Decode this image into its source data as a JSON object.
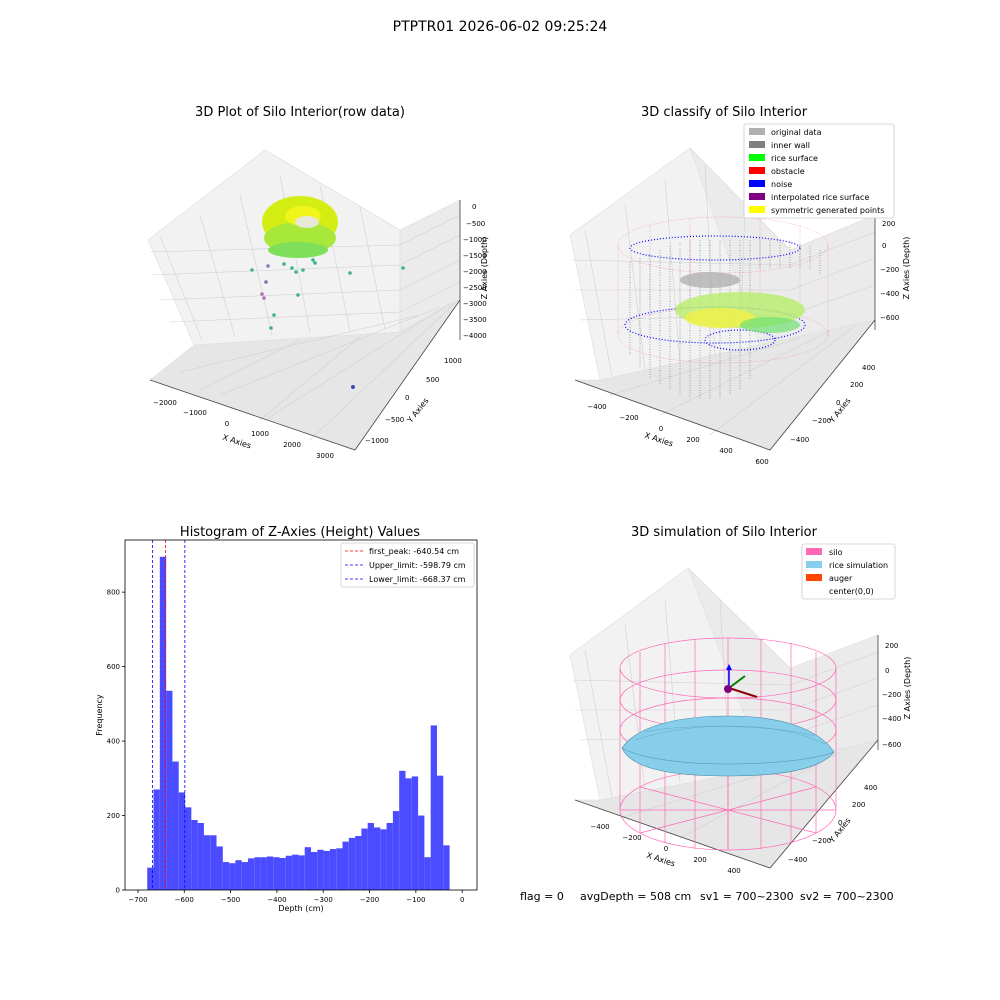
{
  "figure": {
    "suptitle": "PTPTR01 2026-06-02 09:25:24",
    "footer": {
      "flag": "flag = 0",
      "avg": "avgDepth = 508 cm",
      "sv1": "sv1 = 700~2300",
      "sv2": "sv2 = 700~2300"
    }
  },
  "colors": {
    "original_data": "#b0b0b0",
    "inner_wall": "#808080",
    "rice_surface": "#00ff00",
    "obstacle": "#ff0000",
    "noise": "#0000ff",
    "interpolated": "#800080",
    "symmetric": "#ffff00",
    "silo": "#ff69b4",
    "rice_sim": "#87ceeb",
    "auger": "#ff4500",
    "hist_bar": "#4b4bff",
    "hist_peak": "#ff0000",
    "hist_limit": "#0000ff"
  },
  "chart_data": [
    {
      "type": "scatter",
      "title": "3D Plot of Silo Interior(row data)",
      "xlabel": "X Axies",
      "ylabel": "Y Axies",
      "zlabel": "Z Axies (Depth)",
      "xticks": [
        "−2000",
        "−1000",
        "0",
        "1000",
        "2000",
        "3000"
      ],
      "yticks": [
        "−1000",
        "−500",
        "0",
        "500",
        "1000"
      ],
      "zticks": [
        "0",
        "−500",
        "−1000",
        "−1500",
        "−2000",
        "−2500",
        "−3000",
        "−3500",
        "−4000"
      ]
    },
    {
      "type": "scatter",
      "title": "3D classify of Silo Interior",
      "xlabel": "X Axies",
      "ylabel": "Y Axies",
      "zlabel": "Z Axies (Depth)",
      "xticks": [
        "−400",
        "−200",
        "0",
        "200",
        "400",
        "600"
      ],
      "yticks": [
        "−400",
        "−200",
        "0",
        "200",
        "400"
      ],
      "zticks": [
        "200",
        "0",
        "−200",
        "−400",
        "−600"
      ],
      "legend": [
        "original data",
        "inner wall",
        "rice surface",
        "obstacle",
        "noise",
        "interpolated rice surface",
        "symmetric generated points"
      ],
      "legend_loc": "top-right"
    },
    {
      "type": "bar",
      "title": "Histogram of Z-Axies (Height) Values",
      "xlabel": "Depth (cm)",
      "ylabel": "Frequency",
      "xlim": [
        -728,
        32
      ],
      "ylim": [
        0,
        940
      ],
      "xticks": [
        -700,
        -600,
        -500,
        -400,
        -300,
        -200,
        -100,
        0
      ],
      "yticks": [
        0,
        200,
        400,
        600,
        800
      ],
      "bin_start": -680,
      "bin_width": 13.6,
      "values": [
        60,
        270,
        895,
        535,
        345,
        262,
        222,
        188,
        180,
        147,
        147,
        117,
        75,
        72,
        80,
        75,
        85,
        88,
        88,
        90,
        88,
        86,
        92,
        95,
        93,
        115,
        102,
        108,
        105,
        110,
        112,
        130,
        140,
        145,
        165,
        180,
        168,
        163,
        180,
        212,
        320,
        300,
        305,
        200,
        88,
        442,
        307,
        120
      ],
      "vlines": [
        {
          "x": -640.54,
          "label": "first_peak: -640.54 cm",
          "style": "peak"
        },
        {
          "x": -598.79,
          "label": "Upper_limit: -598.79 cm",
          "style": "limit"
        },
        {
          "x": -668.37,
          "label": "Lower_limit: -668.37 cm",
          "style": "limit"
        }
      ],
      "legend_loc": "top-right"
    },
    {
      "type": "area",
      "title": "3D simulation of Silo Interior",
      "xlabel": "X Axies",
      "ylabel": "Y Axies",
      "zlabel": "Z Axies (Depth)",
      "xticks": [
        "−400",
        "−200",
        "0",
        "200",
        "400"
      ],
      "yticks": [
        "−400",
        "−200",
        "0",
        "200",
        "400"
      ],
      "zticks": [
        "200",
        "0",
        "−200",
        "−400",
        "−600"
      ],
      "legend": [
        "silo",
        "rice simulation",
        "auger",
        "center(0,0)"
      ],
      "legend_loc": "top-right"
    }
  ]
}
